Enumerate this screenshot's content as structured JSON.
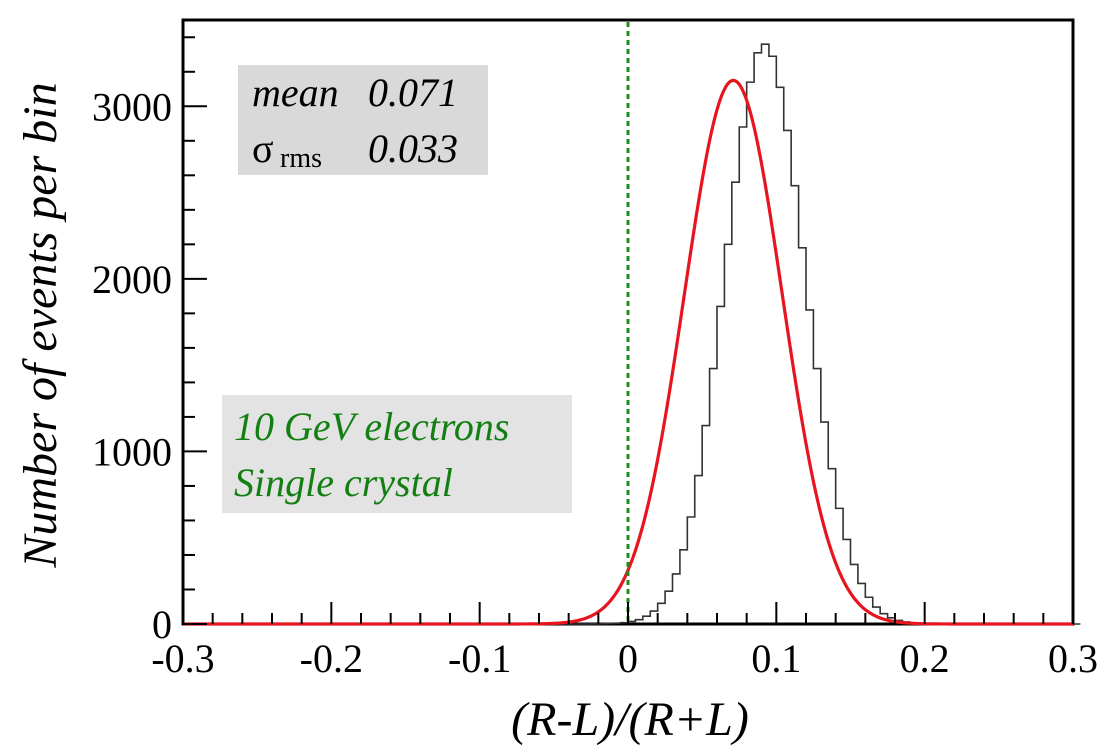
{
  "chart_data": {
    "type": "histogram",
    "xlabel": "(R-L)/(R+L)",
    "ylabel": "Number of events per bin",
    "xlim": [
      -0.3,
      0.3
    ],
    "ylim": [
      0,
      3500
    ],
    "x_ticks": [
      -0.3,
      -0.2,
      -0.1,
      0,
      0.1,
      0.2,
      0.3
    ],
    "x_tick_labels": [
      "-0.3",
      "-0.2",
      "-0.1",
      "0",
      "0.1",
      "0.2",
      "0.3"
    ],
    "y_ticks": [
      0,
      1000,
      2000,
      3000
    ],
    "y_tick_labels": [
      "0",
      "1000",
      "2000",
      "3000"
    ],
    "grid": false,
    "bins": {
      "start": -0.3,
      "width": 0.005,
      "counts": [
        0,
        0,
        0,
        0,
        0,
        0,
        0,
        0,
        0,
        0,
        0,
        0,
        0,
        0,
        0,
        0,
        0,
        0,
        0,
        0,
        0,
        0,
        0,
        0,
        0,
        0,
        0,
        0,
        0,
        0,
        0,
        0,
        0,
        0,
        0,
        0,
        0,
        0,
        0,
        0,
        0,
        0,
        0,
        0,
        0,
        0,
        0,
        0,
        0,
        0,
        0,
        0,
        0,
        0,
        0,
        1,
        2,
        3,
        5,
        8,
        15,
        25,
        45,
        75,
        120,
        190,
        290,
        430,
        620,
        860,
        1150,
        1480,
        1840,
        2200,
        2560,
        2880,
        3140,
        3310,
        3360,
        3290,
        3110,
        2860,
        2540,
        2180,
        1820,
        1480,
        1170,
        900,
        670,
        490,
        345,
        235,
        155,
        98,
        60,
        36,
        21,
        12,
        6,
        3,
        1,
        0,
        0,
        0,
        0,
        0,
        0,
        0,
        0,
        0,
        0,
        0,
        0,
        0,
        0,
        0,
        0,
        0,
        0,
        0,
        0
      ]
    },
    "fit": {
      "type": "gaussian",
      "amplitude": 3150,
      "mean": 0.071,
      "sigma": 0.033,
      "color": "#e8141e"
    },
    "reference_line": {
      "x": 0,
      "style": "dotted",
      "color": "#1a8f1a"
    },
    "histogram_color": "#333333",
    "stats_box": {
      "mean_label": "mean",
      "mean_value": "0.071",
      "rms_symbol": "σ",
      "rms_subscript": "rms",
      "rms_value": "0.033",
      "background": "#d9d9d9"
    },
    "note_box": {
      "line1": "10 GeV electrons",
      "line2": "Single crystal",
      "text_color": "#137f13",
      "background": "#e3e3e3"
    }
  }
}
